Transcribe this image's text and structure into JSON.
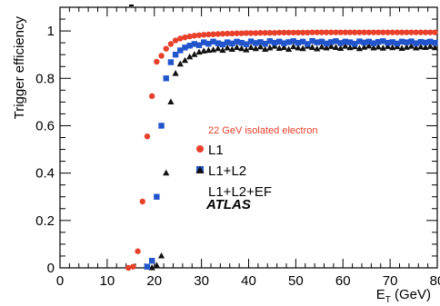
{
  "chart_data": {
    "type": "scatter",
    "ylabel": "Trigger efficiency",
    "xlabel": "E",
    "xlabel_sub": "T",
    "xlabel_unit": " (GeV)",
    "xlim": [
      0,
      80
    ],
    "ylim": [
      0,
      1.1
    ],
    "x_ticks": [
      "0",
      "10",
      "20",
      "30",
      "40",
      "50",
      "60",
      "70",
      "80"
    ],
    "y_ticks": [
      "0",
      "0.2",
      "0.4",
      "0.6",
      "0.8",
      "1"
    ],
    "legend_title": "22 GeV isolated electron",
    "legend_title_color": "#e8402a",
    "experiment_label": "ATLAS",
    "legend_position": "center",
    "series": [
      {
        "name": "L1",
        "marker": "circle",
        "color": "#e8402a",
        "x": [
          14.5,
          15.5,
          16.5,
          17.5,
          18.5,
          19.5,
          20.5,
          21.5,
          22.5,
          23.5,
          24.5,
          25.5,
          26.5,
          27.5,
          28.5,
          29.5,
          30.5,
          31.5,
          32.5,
          33.5,
          34.5,
          35.5,
          36.5,
          37.5,
          38.5,
          39.5,
          40.5,
          41.5,
          42.5,
          43.5,
          44.5,
          45.5,
          46.5,
          47.5,
          48.5,
          49.5,
          50.5,
          51.5,
          52.5,
          53.5,
          54.5,
          55.5,
          56.5,
          57.5,
          58.5,
          59.5,
          60.5,
          61.5,
          62.5,
          63.5,
          64.5,
          65.5,
          66.5,
          67.5,
          68.5,
          69.5,
          70.5,
          71.5,
          72.5,
          73.5,
          74.5,
          75.5,
          76.5,
          77.5,
          78.5,
          79.5
        ],
        "y": [
          0.0,
          0.005,
          0.07,
          0.28,
          0.555,
          0.725,
          0.87,
          0.895,
          0.925,
          0.945,
          0.96,
          0.968,
          0.973,
          0.977,
          0.98,
          0.982,
          0.984,
          0.985,
          0.986,
          0.987,
          0.988,
          0.989,
          0.989,
          0.99,
          0.99,
          0.991,
          0.991,
          0.991,
          0.992,
          0.992,
          0.992,
          0.992,
          0.993,
          0.993,
          0.993,
          0.993,
          0.993,
          0.993,
          0.993,
          0.994,
          0.994,
          0.994,
          0.994,
          0.994,
          0.994,
          0.994,
          0.994,
          0.994,
          0.994,
          0.994,
          0.994,
          0.994,
          0.994,
          0.994,
          0.994,
          0.994,
          0.994,
          0.994,
          0.994,
          0.994,
          0.994,
          0.994,
          0.994,
          0.994,
          0.994,
          0.994
        ]
      },
      {
        "name": "L1+L2",
        "marker": "square",
        "color": "#2255cc",
        "x": [
          18.5,
          19.5,
          20.5,
          21.5,
          22.5,
          23.5,
          24.5,
          25.5,
          26.5,
          27.5,
          28.5,
          29.5,
          30.5,
          31.5,
          32.5,
          33.5,
          34.5,
          35.5,
          36.5,
          37.5,
          38.5,
          39.5,
          40.5,
          41.5,
          42.5,
          43.5,
          44.5,
          45.5,
          46.5,
          47.5,
          48.5,
          49.5,
          50.5,
          51.5,
          52.5,
          53.5,
          54.5,
          55.5,
          56.5,
          57.5,
          58.5,
          59.5,
          60.5,
          61.5,
          62.5,
          63.5,
          64.5,
          65.5,
          66.5,
          67.5,
          68.5,
          69.5,
          70.5,
          71.5,
          72.5,
          73.5,
          74.5,
          75.5,
          76.5,
          77.5,
          78.5,
          79.5
        ],
        "y": [
          0.005,
          0.03,
          0.3,
          0.6,
          0.8,
          0.868,
          0.9,
          0.918,
          0.93,
          0.938,
          0.945,
          0.94,
          0.952,
          0.946,
          0.955,
          0.948,
          0.943,
          0.952,
          0.947,
          0.955,
          0.95,
          0.944,
          0.956,
          0.949,
          0.953,
          0.946,
          0.957,
          0.95,
          0.955,
          0.948,
          0.953,
          0.957,
          0.95,
          0.955,
          0.945,
          0.958,
          0.952,
          0.955,
          0.947,
          0.953,
          0.957,
          0.949,
          0.955,
          0.952,
          0.946,
          0.956,
          0.951,
          0.955,
          0.948,
          0.954,
          0.957,
          0.95,
          0.953,
          0.947,
          0.955,
          0.952,
          0.956,
          0.948,
          0.954,
          0.951,
          0.955,
          0.95
        ]
      },
      {
        "name": "L1+L2+EF",
        "marker": "triangle",
        "color": "#111111",
        "x": [
          19.5,
          20.5,
          21.5,
          22.5,
          23.5,
          24.5,
          25.5,
          26.5,
          27.5,
          28.5,
          29.5,
          30.5,
          31.5,
          32.5,
          33.5,
          34.5,
          35.5,
          36.5,
          37.5,
          38.5,
          39.5,
          40.5,
          41.5,
          42.5,
          43.5,
          44.5,
          45.5,
          46.5,
          47.5,
          48.5,
          49.5,
          50.5,
          51.5,
          52.5,
          53.5,
          54.5,
          55.5,
          56.5,
          57.5,
          58.5,
          59.5,
          60.5,
          61.5,
          62.5,
          63.5,
          64.5,
          65.5,
          66.5,
          67.5,
          68.5,
          69.5,
          70.5,
          71.5,
          72.5,
          73.5,
          74.5,
          75.5,
          76.5,
          77.5,
          78.5,
          79.5
        ],
        "y": [
          0.0,
          0.01,
          0.05,
          0.4,
          0.7,
          0.82,
          0.86,
          0.875,
          0.89,
          0.9,
          0.91,
          0.915,
          0.918,
          0.92,
          0.925,
          0.918,
          0.928,
          0.922,
          0.93,
          0.925,
          0.92,
          0.93,
          0.925,
          0.932,
          0.922,
          0.928,
          0.935,
          0.926,
          0.93,
          0.922,
          0.933,
          0.928,
          0.925,
          0.935,
          0.93,
          0.924,
          0.932,
          0.928,
          0.934,
          0.93,
          0.926,
          0.935,
          0.929,
          0.933,
          0.925,
          0.931,
          0.936,
          0.928,
          0.932,
          0.927,
          0.934,
          0.929,
          0.933,
          0.926,
          0.931,
          0.935,
          0.928,
          0.932,
          0.93,
          0.934,
          0.929
        ]
      }
    ]
  }
}
